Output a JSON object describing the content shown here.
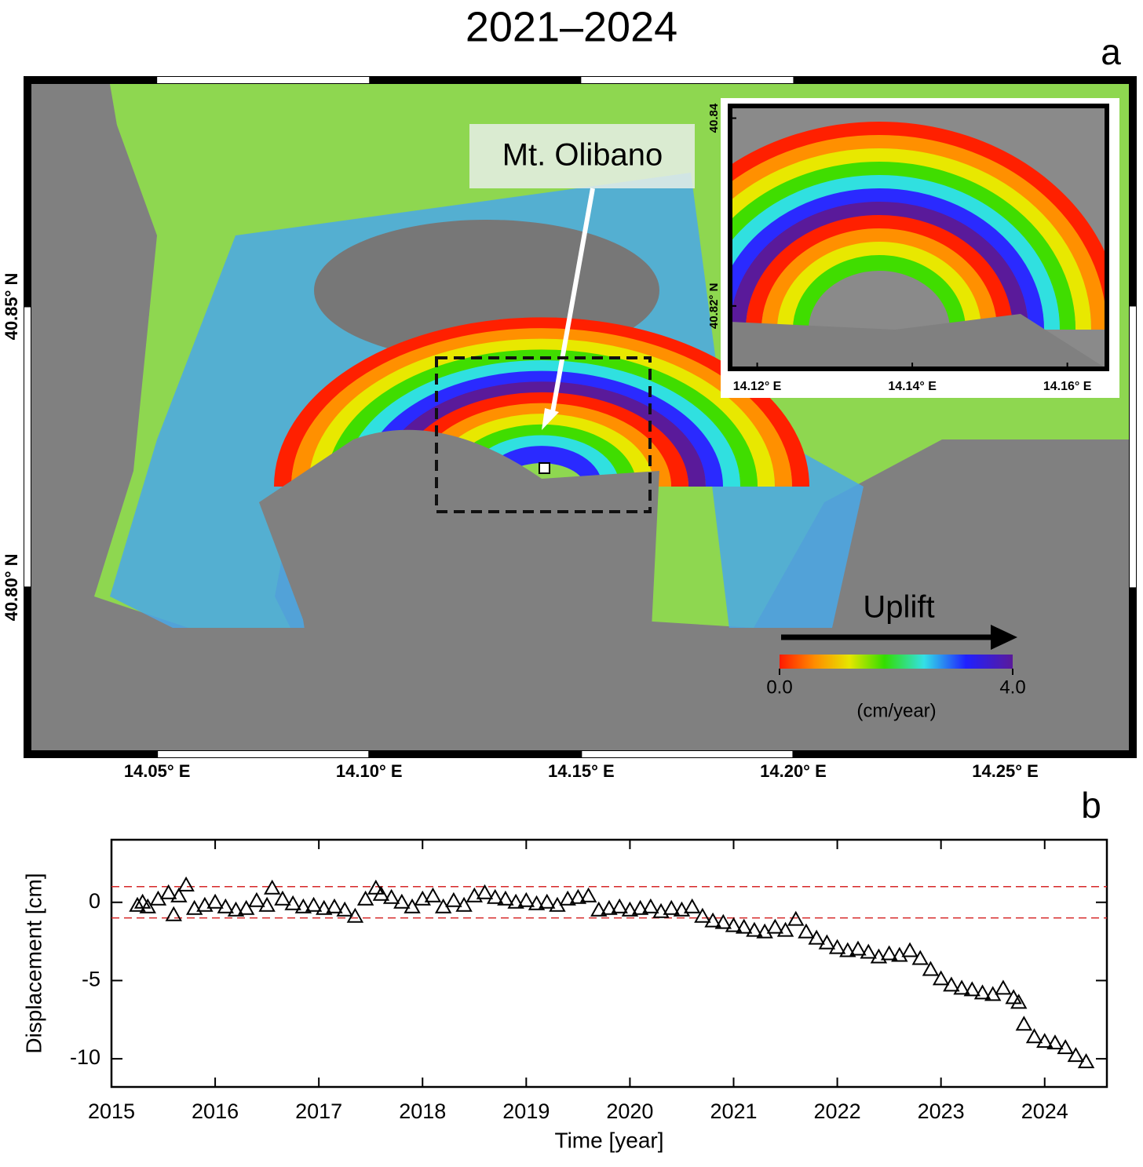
{
  "chart_data": [
    {
      "type": "map",
      "title": "2021–2024",
      "panel_label": "a",
      "xlim": [
        14.0185,
        14.281
      ],
      "ylim": [
        40.7696,
        40.891
      ],
      "xticks": [
        {
          "value": 14.05,
          "label": "14.05° E"
        },
        {
          "value": 14.1,
          "label": "14.10° E"
        },
        {
          "value": 14.15,
          "label": "14.15° E"
        },
        {
          "value": 14.2,
          "label": "14.20° E"
        },
        {
          "value": 14.25,
          "label": "14.25° E"
        }
      ],
      "yticks": [
        {
          "value": 40.8,
          "label": "40.80° N"
        },
        {
          "value": 40.85,
          "label": "40.85° N"
        }
      ],
      "annotations": [
        "Mt. Olibano",
        "Uplift"
      ],
      "colorbar": {
        "lim": [
          0,
          4
        ],
        "ticks": [
          {
            "value": 0,
            "label": "0.0"
          },
          {
            "value": 4,
            "label": "4.0"
          }
        ],
        "label": "(cm/year)"
      },
      "inset": {
        "xlim": [
          14.1165,
          14.1651
        ],
        "ylim": [
          40.8133,
          40.8413
        ],
        "xticks": [
          {
            "value": 14.12,
            "label": "14.12° E"
          },
          {
            "value": 14.14,
            "label": "14.14° E"
          },
          {
            "value": 14.16,
            "label": "14.16° E"
          }
        ],
        "yticks": [
          {
            "value": 40.82,
            "label": "40.82° N"
          },
          {
            "value": 40.84,
            "label": "40.84"
          }
        ]
      }
    },
    {
      "type": "scatter",
      "panel_label": "b",
      "x_label": "Time [year]",
      "y_label": "Displacement [cm]",
      "xlim": [
        2015,
        2024.6
      ],
      "ylim": [
        -11.8,
        4
      ],
      "xticks": [
        2015,
        2016,
        2017,
        2018,
        2019,
        2020,
        2021,
        2022,
        2023,
        2024
      ],
      "yticks": [
        -10,
        -5,
        0
      ],
      "reference_lines": [
        1,
        -1
      ],
      "reference_color": "#d62728",
      "color": "#000000",
      "x": [
        2015.25,
        2015.3,
        2015.35,
        2015.45,
        2015.55,
        2015.6,
        2015.65,
        2015.72,
        2015.8,
        2015.9,
        2016.0,
        2016.1,
        2016.2,
        2016.3,
        2016.4,
        2016.5,
        2016.55,
        2016.65,
        2016.75,
        2016.85,
        2016.95,
        2017.05,
        2017.15,
        2017.25,
        2017.35,
        2017.45,
        2017.55,
        2017.6,
        2017.7,
        2017.8,
        2017.9,
        2018.0,
        2018.1,
        2018.2,
        2018.3,
        2018.4,
        2018.5,
        2018.6,
        2018.7,
        2018.8,
        2018.9,
        2019.0,
        2019.1,
        2019.2,
        2019.3,
        2019.4,
        2019.5,
        2019.6,
        2019.7,
        2019.8,
        2019.9,
        2020.0,
        2020.1,
        2020.2,
        2020.3,
        2020.4,
        2020.5,
        2020.6,
        2020.7,
        2020.8,
        2020.9,
        2021.0,
        2021.1,
        2021.2,
        2021.3,
        2021.4,
        2021.5,
        2021.6,
        2021.7,
        2021.8,
        2021.9,
        2022.0,
        2022.1,
        2022.2,
        2022.3,
        2022.4,
        2022.5,
        2022.6,
        2022.7,
        2022.8,
        2022.9,
        2023.0,
        2023.1,
        2023.2,
        2023.3,
        2023.4,
        2023.5,
        2023.6,
        2023.7,
        2023.75,
        2023.8,
        2023.9,
        2024.0,
        2024.1,
        2024.2,
        2024.3,
        2024.4
      ],
      "values": [
        -0.2,
        0,
        -0.3,
        0.2,
        0.6,
        -0.8,
        0.4,
        1.1,
        -0.4,
        -0.2,
        0,
        -0.3,
        -0.5,
        -0.4,
        0.1,
        -0.2,
        0.9,
        0.2,
        -0.1,
        -0.3,
        -0.2,
        -0.4,
        -0.3,
        -0.5,
        -0.9,
        0.2,
        0.9,
        0.5,
        0.3,
        0,
        -0.3,
        0.2,
        0.4,
        -0.3,
        0.1,
        -0.2,
        0.4,
        0.6,
        0.3,
        0.2,
        0,
        0.1,
        -0.1,
        0,
        -0.2,
        0.2,
        0.3,
        0.4,
        -0.5,
        -0.4,
        -0.3,
        -0.5,
        -0.4,
        -0.3,
        -0.6,
        -0.4,
        -0.5,
        -0.3,
        -0.9,
        -1.2,
        -1.3,
        -1.5,
        -1.6,
        -1.8,
        -1.9,
        -1.6,
        -1.8,
        -1.1,
        -1.9,
        -2.3,
        -2.6,
        -2.9,
        -3.1,
        -3.0,
        -3.2,
        -3.5,
        -3.3,
        -3.4,
        -3.1,
        -3.6,
        -4.3,
        -4.9,
        -5.3,
        -5.5,
        -5.6,
        -5.8,
        -5.9,
        -5.5,
        -6.1,
        -6.4,
        -7.8,
        -8.6,
        -8.9,
        -9.0,
        -9.3,
        -9.8,
        -10.2
      ]
    }
  ]
}
